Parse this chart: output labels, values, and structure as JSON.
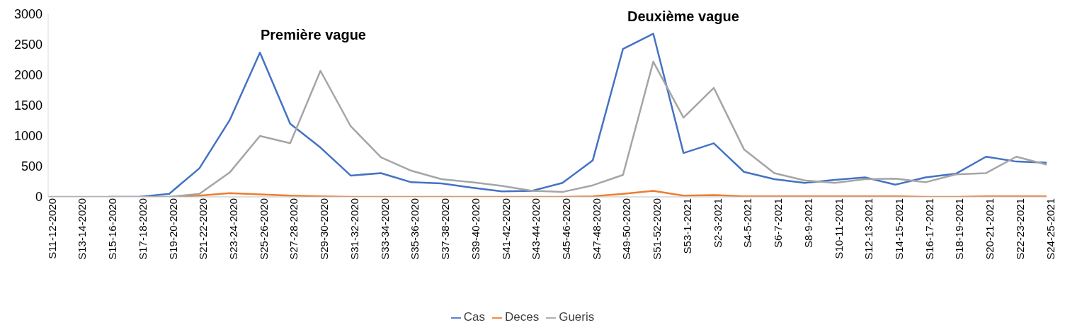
{
  "chart_data": {
    "type": "line",
    "categories": [
      "S11-12-2020",
      "S13-14-2020",
      "S15-16-2020",
      "S17-18-2020",
      "S19-20-2020",
      "S21-22-2020",
      "S23-24-2020",
      "S25-26-2020",
      "S27-28-2020",
      "S29-30-2020",
      "S31-32-2020",
      "S33-34-2020",
      "S35-36-2020",
      "S37-38-2020",
      "S39-40-2020",
      "S41-42-2020",
      "S43-44-2020",
      "S45-46-2020",
      "S47-48-2020",
      "S49-50-2020",
      "S51-52-2020",
      "S53-1-2021",
      "S2-3-2021",
      "S4-5-2021",
      "S6-7-2021",
      "S8-9-2021",
      "S10-11-2021",
      "S12-13-2021",
      "S14-15-2021",
      "S16-17-2021",
      "S18-19-2021",
      "S20-21-2021",
      "S22-23-2021",
      "S24-25-2021"
    ],
    "series": [
      {
        "name": "Cas",
        "color": "#4472c4",
        "values": [
          null,
          null,
          0,
          0,
          50,
          470,
          1260,
          2370,
          1200,
          810,
          350,
          390,
          240,
          220,
          150,
          90,
          100,
          230,
          600,
          2430,
          2680,
          720,
          880,
          410,
          290,
          230,
          280,
          320,
          200,
          320,
          380,
          660,
          580,
          560
        ]
      },
      {
        "name": "Deces",
        "color": "#ed7d31",
        "values": [
          null,
          null,
          null,
          null,
          0,
          20,
          60,
          40,
          20,
          10,
          0,
          0,
          0,
          0,
          0,
          0,
          0,
          0,
          10,
          50,
          100,
          20,
          30,
          10,
          10,
          10,
          10,
          10,
          10,
          0,
          0,
          10,
          10,
          10
        ]
      },
      {
        "name": "Gueris",
        "color": "#a5a5a5",
        "values": [
          0,
          0,
          0,
          0,
          0,
          50,
          400,
          1000,
          880,
          2070,
          1160,
          650,
          430,
          290,
          240,
          180,
          100,
          80,
          190,
          360,
          2220,
          1300,
          1790,
          780,
          390,
          270,
          230,
          290,
          300,
          240,
          370,
          390,
          660,
          530
        ]
      }
    ],
    "ylim": [
      0,
      3000
    ],
    "yticks": [
      0,
      500,
      1000,
      1500,
      2000,
      2500,
      3000
    ],
    "annotations": [
      "Première vague",
      "Deuxième vague"
    ],
    "legend": "bottom",
    "grid": false,
    "marker": "none",
    "line_style": "solid"
  }
}
